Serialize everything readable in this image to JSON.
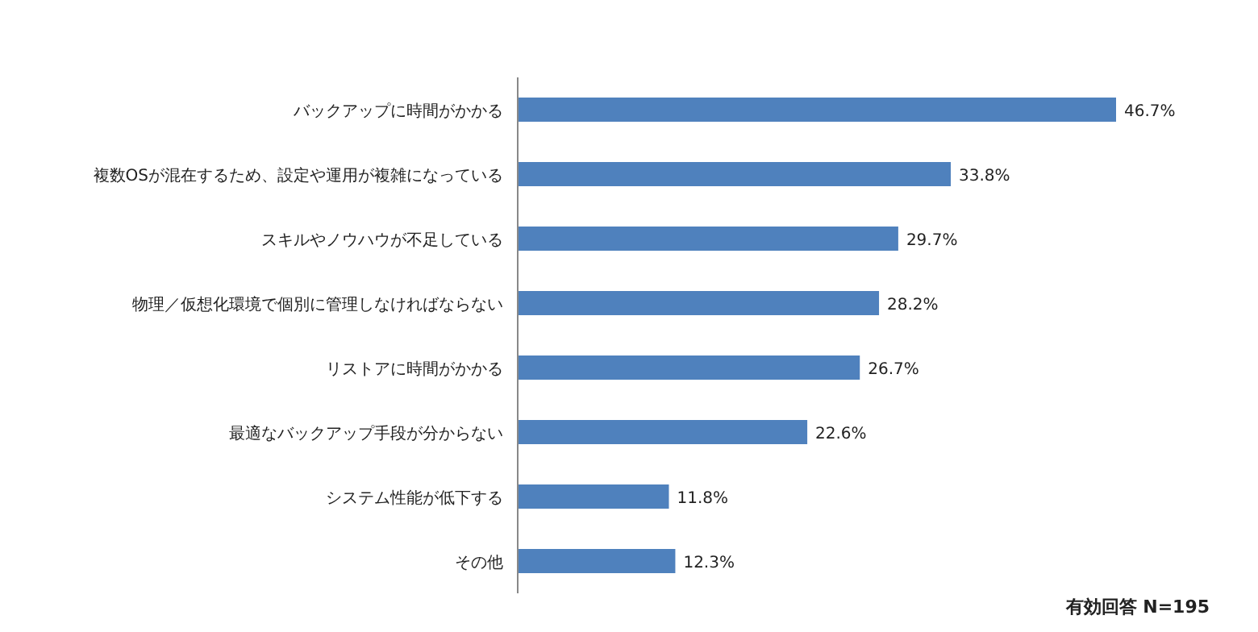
{
  "chart_data": {
    "type": "bar",
    "orientation": "horizontal",
    "color": "#4f81bd",
    "categories": [
      "バックアップに時間がかかる",
      "複数OSが混在するため、設定や運用が複雑になっている",
      "スキルやノウハウが不足している",
      "物理／仮想化環境で個別に管理しなければならない",
      "リストアに時間がかかる",
      "最適なバックアップ手段が分からない",
      "システム性能が低下する",
      "その他"
    ],
    "values": [
      46.7,
      33.8,
      29.7,
      28.2,
      26.7,
      22.6,
      11.8,
      12.3
    ],
    "value_labels": [
      "46.7%",
      "33.8%",
      "29.7%",
      "28.2%",
      "26.7%",
      "22.6%",
      "11.8%",
      "12.3%"
    ],
    "annotations": [
      "有効回答 N=195"
    ]
  }
}
